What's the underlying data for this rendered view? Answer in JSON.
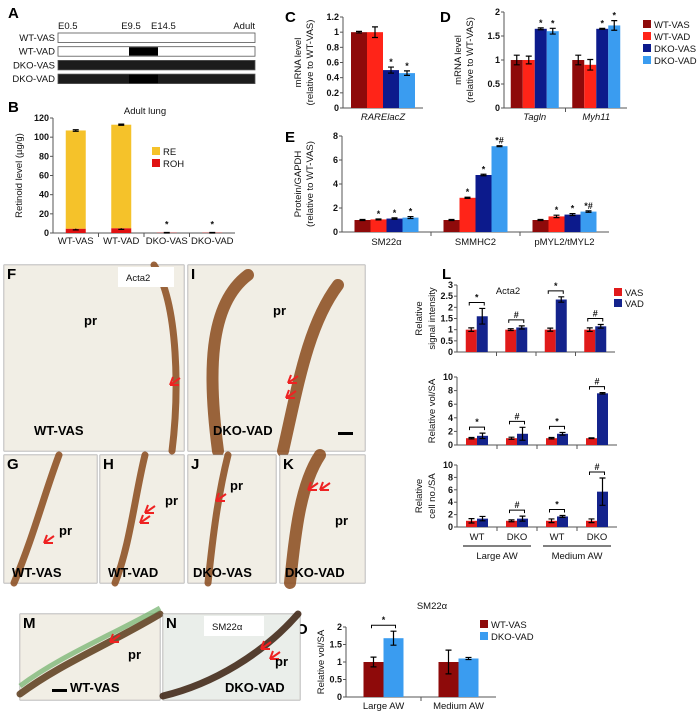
{
  "colors": {
    "WT-VAS": "#8e0a0a",
    "WT-VAD": "#ff2418",
    "DKO-VAS": "#0c1a8c",
    "DKO-VAD": "#3a9cf0",
    "RE": "#f5c22a",
    "ROH": "#e01212",
    "VAS": "#e01a1a",
    "VAD": "#14238c",
    "stain": "#8a4a1c",
    "arrow": "#ee2222"
  },
  "panel_a": {
    "label": "A",
    "timepoints": [
      "E0.5",
      "E9.5",
      "E14.5",
      "Adult"
    ],
    "rows": [
      {
        "label": "WT-VAS",
        "genotype": "WT",
        "vad_window": false
      },
      {
        "label": "WT-VAD",
        "genotype": "WT",
        "vad_window": true
      },
      {
        "label": "DKO-VAS",
        "genotype": "DKO",
        "vad_window": false
      },
      {
        "label": "DKO-VAD",
        "genotype": "DKO",
        "vad_window": true
      }
    ]
  },
  "chart_data": [
    {
      "id": "B",
      "panel_label": "B",
      "type": "bar",
      "stacked": true,
      "title": "Adult lung",
      "ylabel": [
        "Retinoid level (µg/g)"
      ],
      "ylim": [
        0,
        120
      ],
      "yticks": [
        0,
        20,
        40,
        60,
        80,
        100,
        120
      ],
      "categories": [
        "WT-VAS",
        "WT-VAD",
        "DKO-VAS",
        "DKO-VAD"
      ],
      "series": [
        {
          "name": "ROH",
          "values": [
            4.5,
            5,
            0.3,
            0.3
          ],
          "errors": [
            1.2,
            1.2,
            0.3,
            0.3
          ]
        },
        {
          "name": "RE",
          "values": [
            102.5,
            108,
            0,
            0
          ],
          "errors": [
            0.8,
            0.6,
            0,
            0
          ]
        }
      ],
      "annotations": [
        "",
        "",
        "*",
        "*"
      ],
      "legend": [
        "RE",
        "ROH"
      ],
      "legend_position": "center-right"
    },
    {
      "id": "C",
      "panel_label": "C",
      "type": "bar",
      "ylabel": [
        "mRNA level",
        "(relative to WT-VAS)"
      ],
      "ylim": [
        0,
        1.2
      ],
      "yticks": [
        0,
        0.2,
        0.4,
        0.6,
        0.8,
        1,
        1.2
      ],
      "categories": [
        "RARElacZ"
      ],
      "italic_categories": true,
      "series": [
        {
          "name": "WT-VAS",
          "values": [
            1.0
          ],
          "errors": [
            0.01
          ]
        },
        {
          "name": "WT-VAD",
          "values": [
            1.0
          ],
          "errors": [
            0.07
          ]
        },
        {
          "name": "DKO-VAS",
          "values": [
            0.5
          ],
          "errors": [
            0.04
          ]
        },
        {
          "name": "DKO-VAD",
          "values": [
            0.46
          ],
          "errors": [
            0.03
          ]
        }
      ],
      "annotations": [
        [
          "",
          "",
          "*",
          "*"
        ]
      ]
    },
    {
      "id": "D",
      "panel_label": "D",
      "type": "bar",
      "ylabel": [
        "mRNA level",
        "(relative to WT-VAS)"
      ],
      "ylim": [
        0,
        2
      ],
      "yticks": [
        0,
        0.5,
        1,
        1.5,
        2
      ],
      "categories": [
        "Tagln",
        "Myh11"
      ],
      "italic_categories": true,
      "series": [
        {
          "name": "WT-VAS",
          "values": [
            1.0,
            1.0
          ],
          "errors": [
            0.1,
            0.1
          ]
        },
        {
          "name": "WT-VAD",
          "values": [
            1.0,
            0.9
          ],
          "errors": [
            0.08,
            0.11
          ]
        },
        {
          "name": "DKO-VAS",
          "values": [
            1.65,
            1.65
          ],
          "errors": [
            0.02,
            0.01
          ]
        },
        {
          "name": "DKO-VAD",
          "values": [
            1.6,
            1.72
          ],
          "errors": [
            0.06,
            0.1
          ]
        }
      ],
      "annotations": [
        [
          "",
          "",
          "*",
          "*"
        ],
        [
          "",
          "",
          "*",
          "*"
        ]
      ],
      "legend": [
        "WT-VAS",
        "WT-VAD",
        "DKO-VAS",
        "DKO-VAD"
      ],
      "legend_position": "right"
    },
    {
      "id": "E",
      "panel_label": "E",
      "type": "bar",
      "ylabel": [
        "Protein/GAPDH",
        "(relative to WT-VAS)"
      ],
      "ylim": [
        0,
        8
      ],
      "yticks": [
        0,
        2,
        4,
        6,
        8
      ],
      "categories": [
        "SM22α",
        "SMMHC2",
        "pMYL2/tMYL2"
      ],
      "series": [
        {
          "name": "WT-VAS",
          "values": [
            1.0,
            1.0,
            1.0
          ],
          "errors": [
            0.04,
            0.04,
            0.04
          ]
        },
        {
          "name": "WT-VAD",
          "values": [
            1.05,
            2.85,
            1.3
          ],
          "errors": [
            0.04,
            0.05,
            0.1
          ]
        },
        {
          "name": "DKO-VAS",
          "values": [
            1.12,
            4.75,
            1.45
          ],
          "errors": [
            0.06,
            0.06,
            0.08
          ]
        },
        {
          "name": "DKO-VAD",
          "values": [
            1.2,
            7.15,
            1.7
          ],
          "errors": [
            0.08,
            0.04,
            0.06
          ]
        }
      ],
      "annotations": [
        [
          "",
          "*",
          "*",
          "*"
        ],
        [
          "",
          "*",
          "*",
          "*#"
        ],
        [
          "",
          "*",
          "*",
          "*#"
        ]
      ]
    },
    {
      "id": "L1",
      "panel_label": "L",
      "type": "bar",
      "title": "Acta2",
      "ylabel": [
        "Relative",
        "signal intensity"
      ],
      "ylim": [
        0,
        3
      ],
      "yticks": [
        0,
        0.5,
        1,
        1.5,
        2,
        2.5,
        3
      ],
      "categories": [
        "WT",
        "DKO",
        "WT",
        "DKO"
      ],
      "series": [
        {
          "name": "VAS",
          "values": [
            1,
            1,
            1,
            1
          ],
          "errors": [
            0.08,
            0.04,
            0.07,
            0.08
          ]
        },
        {
          "name": "VAD",
          "values": [
            1.6,
            1.1,
            2.35,
            1.15
          ],
          "errors": [
            0.35,
            0.07,
            0.12,
            0.08
          ]
        }
      ],
      "brackets": [
        "*",
        "#",
        "*",
        "#"
      ],
      "legend": [
        "VAS",
        "VAD"
      ],
      "legend_position": "top-right"
    },
    {
      "id": "L2",
      "type": "bar",
      "ylabel": [
        "Relative vol/SA"
      ],
      "ylim": [
        0,
        10
      ],
      "yticks": [
        0,
        2,
        4,
        6,
        8,
        10
      ],
      "categories": [
        "WT",
        "DKO",
        "WT",
        "DKO"
      ],
      "series": [
        {
          "name": "VAS",
          "values": [
            1,
            1,
            1,
            1
          ],
          "errors": [
            0.1,
            0.15,
            0.1,
            0.05
          ]
        },
        {
          "name": "VAD",
          "values": [
            1.35,
            1.65,
            1.65,
            7.6
          ],
          "errors": [
            0.4,
            0.95,
            0.2,
            0.1
          ]
        }
      ],
      "brackets": [
        "*",
        "#",
        "*",
        "#"
      ]
    },
    {
      "id": "L3",
      "type": "bar",
      "ylabel": [
        "Relative",
        "cell no./SA"
      ],
      "ylim": [
        0,
        10
      ],
      "yticks": [
        0,
        2,
        4,
        6,
        8,
        10
      ],
      "categories": [
        "WT",
        "DKO",
        "WT",
        "DKO"
      ],
      "group_labels": [
        "Large AW",
        "Medium AW"
      ],
      "series": [
        {
          "name": "VAS",
          "values": [
            1,
            1,
            1,
            1
          ],
          "errors": [
            0.35,
            0.15,
            0.3,
            0.3
          ]
        },
        {
          "name": "VAD",
          "values": [
            1.35,
            1.35,
            1.7,
            5.7
          ],
          "errors": [
            0.35,
            0.4,
            0.15,
            2.2
          ]
        }
      ],
      "brackets": [
        "",
        "#",
        "*",
        "#"
      ]
    },
    {
      "id": "O",
      "panel_label": "O",
      "type": "bar",
      "title": "SM22α",
      "ylabel": [
        "Relative vol/SA"
      ],
      "ylim": [
        0,
        2
      ],
      "yticks": [
        0,
        0.5,
        1,
        1.5,
        2
      ],
      "categories": [
        "Large AW",
        "Medium AW"
      ],
      "series": [
        {
          "name": "WT-VAS",
          "values": [
            1.0,
            1.0
          ],
          "errors": [
            0.14,
            0.34
          ]
        },
        {
          "name": "DKO-VAD",
          "values": [
            1.68,
            1.1
          ],
          "errors": [
            0.2,
            0.03
          ]
        }
      ],
      "brackets": [
        "*",
        ""
      ],
      "legend": [
        "WT-VAS",
        "DKO-VAD"
      ],
      "legend_position": "top-right"
    }
  ],
  "histology": [
    {
      "panel": "F",
      "caption": "WT-VAS",
      "stain_label": "Acta2",
      "lumen_label": "pr"
    },
    {
      "panel": "I",
      "caption": "DKO-VAD",
      "stain_label": "",
      "lumen_label": "pr"
    },
    {
      "panel": "G",
      "caption": "WT-VAS",
      "stain_label": "",
      "lumen_label": "pr"
    },
    {
      "panel": "H",
      "caption": "WT-VAD",
      "stain_label": "",
      "lumen_label": "pr"
    },
    {
      "panel": "J",
      "caption": "DKO-VAS",
      "stain_label": "",
      "lumen_label": "pr"
    },
    {
      "panel": "K",
      "caption": "DKO-VAD",
      "stain_label": "",
      "lumen_label": "pr"
    },
    {
      "panel": "M",
      "caption": "WT-VAS",
      "stain_label": "",
      "lumen_label": "pr"
    },
    {
      "panel": "N",
      "caption": "DKO-VAD",
      "stain_label": "SM22α",
      "lumen_label": "pr"
    }
  ]
}
